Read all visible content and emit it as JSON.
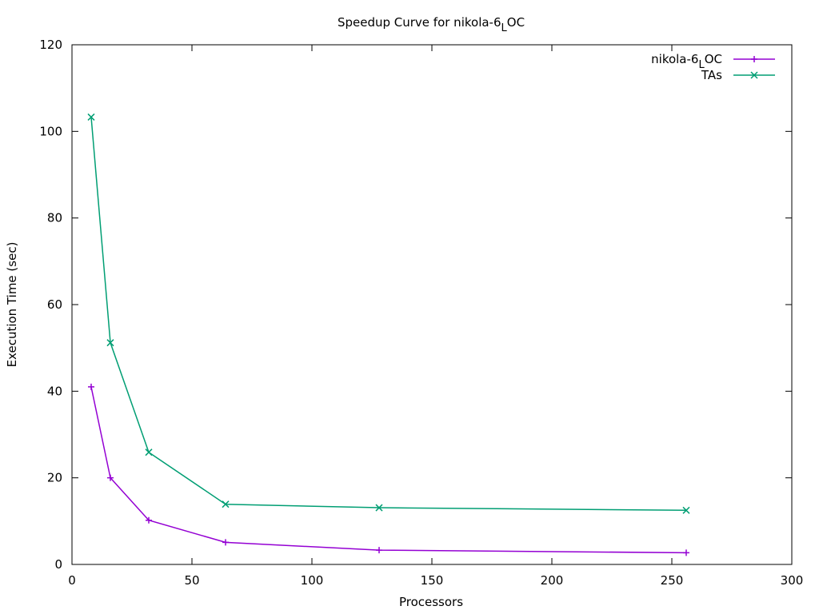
{
  "chart_data": {
    "type": "line",
    "title": "Speedup Curve for nikola-6",
    "title_subscript": "L",
    "title_suffix": "OC",
    "xlabel": "Processors",
    "ylabel": "Execution Time (sec)",
    "xlim": [
      0,
      300
    ],
    "ylim": [
      0,
      120
    ],
    "xticks": [
      0,
      50,
      100,
      150,
      200,
      250,
      300
    ],
    "yticks": [
      0,
      20,
      40,
      60,
      80,
      100,
      120
    ],
    "legend_position": "top-right",
    "grid": false,
    "series": [
      {
        "name": "nikola-6",
        "name_subscript": "L",
        "name_suffix": "OC",
        "color": "#9400d3",
        "marker": "plus",
        "x": [
          8,
          16,
          32,
          64,
          128,
          256
        ],
        "y": [
          41,
          20,
          10.2,
          5.1,
          3.3,
          2.7
        ]
      },
      {
        "name": "TAs",
        "name_subscript": "",
        "name_suffix": "",
        "color": "#009e73",
        "marker": "cross",
        "x": [
          8,
          16,
          32,
          64,
          128,
          256
        ],
        "y": [
          103.3,
          51.2,
          25.9,
          13.9,
          13.1,
          12.5
        ]
      }
    ]
  }
}
